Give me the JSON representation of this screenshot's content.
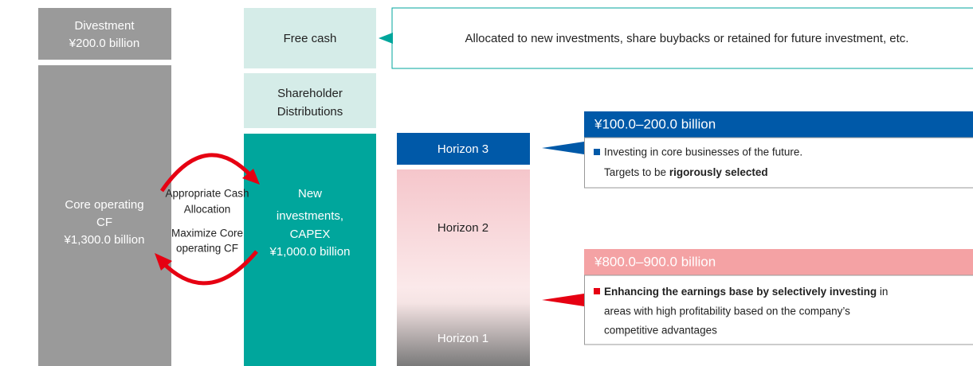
{
  "left": {
    "divestment": [
      "Divestment",
      "¥200.0 billion"
    ],
    "core": [
      "Core operating",
      "CF",
      "¥1,300.0 billion"
    ]
  },
  "cycle": {
    "top": [
      "Appropriate Cash",
      "Allocation"
    ],
    "bottom": [
      "Maximize Core",
      "operating CF"
    ]
  },
  "middle": {
    "free_cash": "Free cash",
    "shareholder": [
      "Shareholder",
      "Distributions"
    ],
    "new_investments": [
      "New",
      "investments,",
      "CAPEX",
      "¥1,000.0 billion"
    ]
  },
  "free_cash_note": "Allocated to new investments, share buybacks or retained for future investment, etc.",
  "horizons": {
    "h3": "Horizon 3",
    "h2": "Horizon 2",
    "h1": "Horizon 1"
  },
  "callout_h3": {
    "header": "¥100.0–200.0 billion",
    "lines": [
      [
        "Investing in core businesses of the future."
      ],
      [
        "Targets to be ",
        "rigorously selected"
      ]
    ]
  },
  "callout_h12": {
    "header": "¥800.0–900.0 billion",
    "lines": [
      [
        "Enhancing the earnings base by selectively investing",
        " in"
      ],
      [
        "areas with high profitability based on the company’s"
      ],
      [
        "competitive advantages"
      ]
    ]
  }
}
